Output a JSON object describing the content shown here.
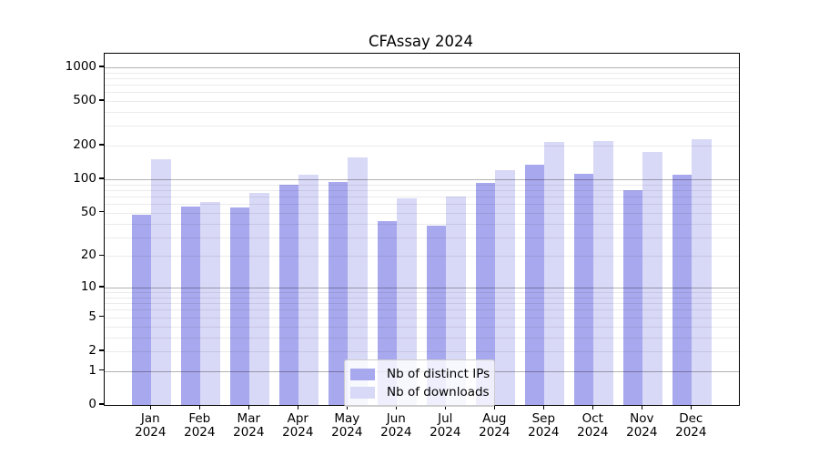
{
  "title": "CFAssay 2024",
  "colors": {
    "distinct_ips": "#a8a8ee",
    "downloads": "#d8d8f7",
    "axis": "#000000",
    "grid_major": "rgba(0,0,0,0.30)",
    "grid_minor": "rgba(0,0,0,0.08)"
  },
  "legend": {
    "items": [
      {
        "label": "Nb of distinct IPs",
        "series": "distinct_ips"
      },
      {
        "label": "Nb of downloads",
        "series": "downloads"
      }
    ]
  },
  "chart_data": {
    "type": "bar",
    "title": "CFAssay 2024",
    "yscale": "log1p",
    "grid": "major+minor",
    "legend_position": "lower center",
    "categories": [
      "Jan",
      "Feb",
      "Mar",
      "Apr",
      "May",
      "Jun",
      "Jul",
      "Aug",
      "Sep",
      "Oct",
      "Nov",
      "Dec"
    ],
    "year": "2024",
    "series": [
      {
        "name": "Nb of distinct IPs",
        "color": "#a8a8ee",
        "values": [
          48,
          57,
          56,
          90,
          95,
          42,
          38,
          93,
          135,
          113,
          80,
          110
        ]
      },
      {
        "name": "Nb of downloads",
        "color": "#d8d8f7",
        "values": [
          150,
          62,
          75,
          110,
          158,
          68,
          70,
          120,
          215,
          220,
          175,
          230
        ]
      }
    ],
    "yticks": [
      0,
      1,
      2,
      5,
      10,
      20,
      50,
      100,
      200,
      500,
      1000
    ],
    "ylim": [
      0,
      1320
    ],
    "xlabel": "",
    "ylabel": ""
  }
}
